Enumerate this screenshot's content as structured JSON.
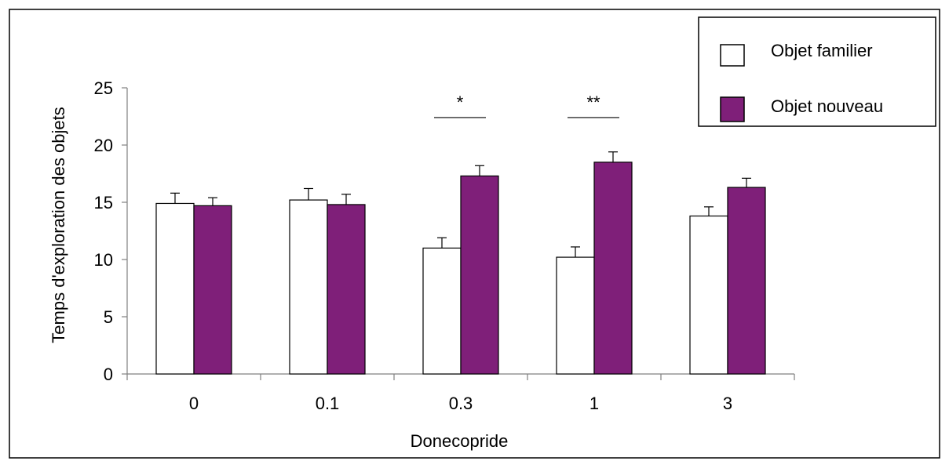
{
  "chart_data": {
    "type": "bar",
    "title": "",
    "xlabel": "Donecopride",
    "ylabel": "Temps d'exploration des objets",
    "categories": [
      "0",
      "0.1",
      "0.3",
      "1",
      "3"
    ],
    "ylim": [
      0,
      25
    ],
    "yticks": [
      0,
      5,
      10,
      15,
      20,
      25
    ],
    "grid": false,
    "legend_position": "top-right",
    "series": [
      {
        "name": "Objet familier",
        "color": "#ffffff",
        "values": [
          14.9,
          15.2,
          11.0,
          10.2,
          13.8
        ],
        "errors": [
          0.9,
          1.0,
          0.9,
          0.9,
          0.8
        ]
      },
      {
        "name": "Objet nouveau",
        "color": "#7f1f79",
        "values": [
          14.7,
          14.8,
          17.3,
          18.5,
          16.3
        ],
        "errors": [
          0.7,
          0.9,
          0.9,
          0.9,
          0.8
        ]
      }
    ],
    "significance": [
      {
        "category": "0.3",
        "label": "*"
      },
      {
        "category": "1",
        "label": "**"
      }
    ]
  }
}
